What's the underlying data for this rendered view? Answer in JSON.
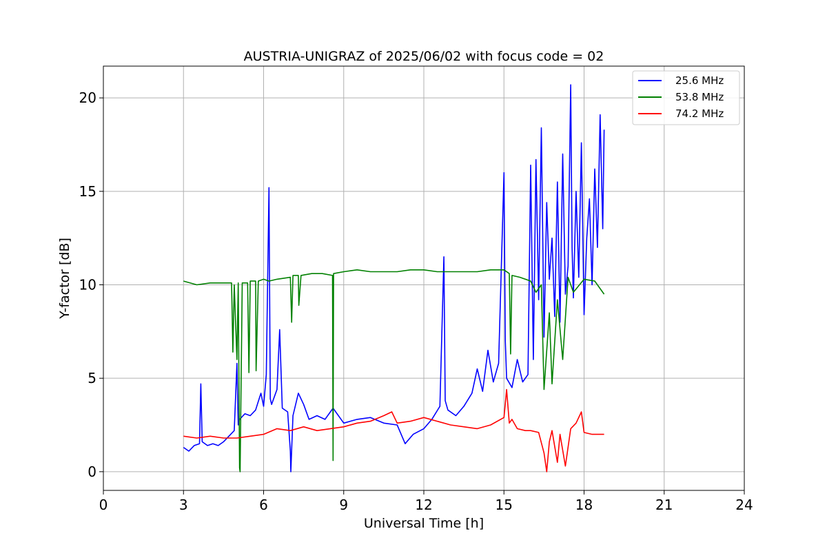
{
  "chart_data": {
    "type": "line",
    "title": "AUSTRIA-UNIGRAZ of 2025/06/02 with focus code = 02",
    "xlabel": "Universal Time [h]",
    "ylabel": "Y-factor [dB]",
    "xlim": [
      0,
      24
    ],
    "ylim": [
      -1.0,
      21.7
    ],
    "xticks": [
      0,
      3,
      6,
      9,
      12,
      15,
      18,
      21,
      24
    ],
    "xtick_labels": [
      "0",
      "3",
      "6",
      "9",
      "12",
      "15",
      "18",
      "21",
      "24"
    ],
    "yticks": [
      0,
      5,
      10,
      15,
      20
    ],
    "ytick_labels": [
      "0",
      "5",
      "10",
      "15",
      "20"
    ],
    "grid": true,
    "legend_position": "top-right",
    "series": [
      {
        "name": "25.6 MHz",
        "color": "#0000ff",
        "x": [
          3.0,
          3.2,
          3.4,
          3.6,
          3.65,
          3.7,
          3.9,
          4.1,
          4.3,
          4.5,
          4.7,
          4.9,
          5.0,
          5.05,
          5.1,
          5.3,
          5.5,
          5.7,
          5.9,
          6.0,
          6.1,
          6.2,
          6.25,
          6.3,
          6.5,
          6.6,
          6.7,
          6.9,
          7.0,
          7.02,
          7.1,
          7.3,
          7.5,
          7.7,
          8.0,
          8.3,
          8.6,
          9.0,
          9.5,
          10.0,
          10.5,
          11.0,
          11.3,
          11.6,
          12.0,
          12.3,
          12.6,
          12.75,
          12.8,
          12.9,
          13.2,
          13.5,
          13.8,
          14.0,
          14.2,
          14.4,
          14.6,
          14.8,
          15.0,
          15.05,
          15.1,
          15.3,
          15.5,
          15.7,
          15.9,
          16.0,
          16.1,
          16.2,
          16.3,
          16.4,
          16.5,
          16.6,
          16.7,
          16.8,
          16.9,
          17.0,
          17.1,
          17.2,
          17.3,
          17.4,
          17.5,
          17.55,
          17.6,
          17.7,
          17.8,
          17.9,
          18.0,
          18.1,
          18.2,
          18.3,
          18.4,
          18.5,
          18.6,
          18.7,
          18.75
        ],
        "y": [
          1.3,
          1.1,
          1.4,
          1.5,
          4.7,
          1.6,
          1.4,
          1.5,
          1.4,
          1.6,
          1.9,
          2.2,
          5.8,
          2.5,
          2.8,
          3.1,
          3.0,
          3.3,
          4.2,
          3.5,
          5.2,
          15.2,
          3.9,
          3.6,
          4.4,
          7.6,
          3.4,
          3.2,
          1.1,
          0.0,
          3.0,
          4.2,
          3.6,
          2.8,
          3.0,
          2.8,
          3.4,
          2.6,
          2.8,
          2.9,
          2.6,
          2.5,
          1.5,
          2.0,
          2.3,
          2.8,
          3.5,
          11.5,
          3.8,
          3.3,
          3.0,
          3.5,
          4.2,
          5.5,
          4.3,
          6.5,
          4.8,
          5.8,
          16.0,
          7.0,
          5.0,
          4.5,
          6.0,
          4.8,
          5.2,
          16.4,
          6.0,
          16.7,
          9.2,
          18.4,
          7.2,
          14.4,
          10.3,
          12.5,
          8.3,
          15.5,
          8.0,
          17.0,
          9.5,
          11.0,
          20.7,
          12.0,
          9.3,
          15.0,
          10.4,
          17.6,
          8.4,
          12.5,
          14.6,
          10.0,
          16.2,
          12.0,
          19.1,
          13.0,
          18.3
        ]
      },
      {
        "name": "53.8 MHz",
        "color": "#008000",
        "x": [
          3.0,
          3.5,
          4.0,
          4.5,
          4.8,
          4.85,
          4.9,
          5.0,
          5.05,
          5.1,
          5.12,
          5.2,
          5.4,
          5.45,
          5.5,
          5.7,
          5.72,
          5.8,
          6.0,
          6.2,
          6.5,
          7.0,
          7.05,
          7.1,
          7.3,
          7.32,
          7.4,
          7.8,
          8.2,
          8.58,
          8.6,
          8.62,
          9.0,
          9.5,
          10.0,
          10.5,
          11.0,
          11.5,
          12.0,
          12.5,
          13.0,
          13.5,
          14.0,
          14.5,
          15.0,
          15.2,
          15.25,
          15.3,
          15.6,
          16.0,
          16.2,
          16.4,
          16.5,
          16.7,
          16.8,
          17.0,
          17.2,
          17.4,
          17.6,
          18.0,
          18.4,
          18.75
        ],
        "y": [
          10.2,
          10.0,
          10.1,
          10.1,
          10.1,
          6.4,
          10.0,
          6.0,
          10.1,
          0.2,
          0.0,
          10.1,
          10.1,
          5.3,
          10.2,
          10.2,
          5.4,
          10.2,
          10.3,
          10.2,
          10.3,
          10.4,
          8.0,
          10.5,
          10.5,
          8.9,
          10.5,
          10.6,
          10.6,
          10.5,
          0.6,
          10.6,
          10.7,
          10.8,
          10.7,
          10.7,
          10.7,
          10.8,
          10.8,
          10.7,
          10.7,
          10.7,
          10.7,
          10.8,
          10.8,
          10.6,
          6.3,
          10.5,
          10.4,
          10.2,
          9.6,
          10.0,
          4.4,
          8.5,
          4.7,
          9.2,
          6.0,
          10.4,
          9.6,
          10.3,
          10.2,
          9.5
        ]
      },
      {
        "name": "74.2 MHz",
        "color": "#ff0000",
        "x": [
          3.0,
          3.5,
          4.0,
          4.5,
          5.0,
          5.5,
          6.0,
          6.5,
          7.0,
          7.5,
          8.0,
          8.5,
          9.0,
          9.5,
          10.0,
          10.5,
          10.8,
          11.0,
          11.5,
          12.0,
          12.5,
          13.0,
          13.5,
          14.0,
          14.5,
          15.0,
          15.1,
          15.2,
          15.3,
          15.5,
          15.8,
          16.0,
          16.3,
          16.5,
          16.6,
          16.7,
          16.8,
          17.0,
          17.1,
          17.3,
          17.5,
          17.7,
          17.9,
          18.0,
          18.3,
          18.75
        ],
        "y": [
          1.9,
          1.8,
          1.9,
          1.8,
          1.8,
          1.9,
          2.0,
          2.3,
          2.2,
          2.4,
          2.2,
          2.3,
          2.4,
          2.6,
          2.7,
          3.0,
          3.2,
          2.6,
          2.7,
          2.9,
          2.7,
          2.5,
          2.4,
          2.3,
          2.5,
          2.9,
          4.4,
          2.6,
          2.8,
          2.3,
          2.2,
          2.2,
          2.1,
          1.0,
          0.0,
          1.6,
          2.2,
          0.5,
          2.0,
          0.3,
          2.3,
          2.6,
          3.2,
          2.1,
          2.0,
          2.0
        ]
      }
    ]
  }
}
